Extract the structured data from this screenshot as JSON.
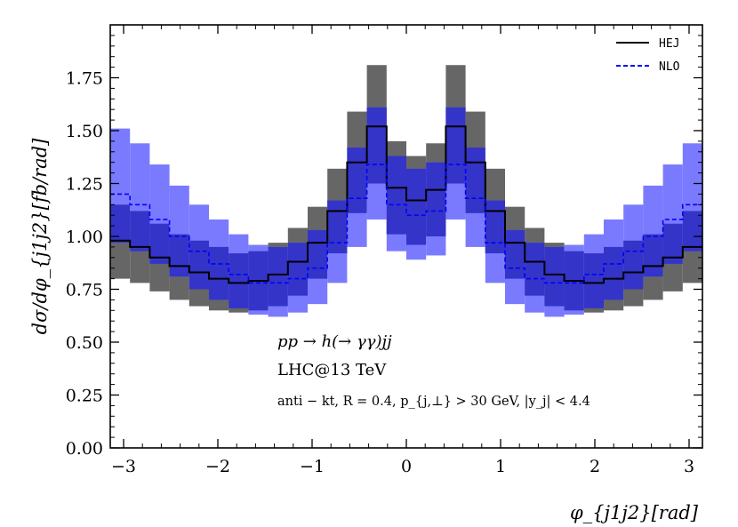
{
  "chart_data": {
    "type": "line",
    "xlabel": "φ_{j1j2}[rad]",
    "ylabel": "dσ/dφ_{j1j2}[fb/rad]",
    "xlim": [
      -3.14159,
      3.14159
    ],
    "ylim": [
      0,
      2.0
    ],
    "xticks": [
      -3,
      -2,
      -1,
      0,
      1,
      2,
      3
    ],
    "xtick_labels": [
      "−3",
      "−2",
      "−1",
      "0",
      "1",
      "2",
      "3"
    ],
    "yticks": [
      0,
      0.25,
      0.5,
      0.75,
      1.0,
      1.25,
      1.5,
      1.75
    ],
    "ytick_labels": [
      "0.00",
      "0.25",
      "0.50",
      "0.75",
      "1.00",
      "1.25",
      "1.50",
      "1.75"
    ],
    "annotations": [
      "pp → h(→ γγ)jj",
      "LHC@13 TeV",
      "anti − kt, R = 0.4, p_{j,⊥} > 30 GeV, |y_j| < 4.4"
    ],
    "legend": {
      "placement": "top-right",
      "entries": [
        "HEJ",
        "NLO"
      ]
    },
    "bins": {
      "n": 30,
      "edges_range": [
        -3.14159,
        3.14159
      ]
    },
    "series": [
      {
        "name": "HEJ",
        "color": "#000000",
        "linestyle": "solid",
        "band_color": "#666666",
        "values": [
          0.98,
          0.95,
          0.9,
          0.86,
          0.83,
          0.8,
          0.78,
          0.79,
          0.82,
          0.88,
          0.97,
          1.12,
          1.35,
          1.52,
          1.23,
          1.17,
          1.22,
          1.52,
          1.35,
          1.12,
          0.97,
          0.88,
          0.82,
          0.79,
          0.78,
          0.8,
          0.83,
          0.86,
          0.9,
          0.95
        ],
        "band_low": [
          0.8,
          0.78,
          0.74,
          0.7,
          0.67,
          0.65,
          0.64,
          0.65,
          0.67,
          0.72,
          0.8,
          0.92,
          1.11,
          1.25,
          1.01,
          0.96,
          1.0,
          1.25,
          1.11,
          0.92,
          0.8,
          0.72,
          0.67,
          0.65,
          0.64,
          0.65,
          0.67,
          0.7,
          0.74,
          0.78
        ],
        "band_high": [
          1.15,
          1.12,
          1.06,
          1.01,
          0.98,
          0.95,
          0.92,
          0.93,
          0.97,
          1.04,
          1.14,
          1.32,
          1.59,
          1.81,
          1.45,
          1.38,
          1.44,
          1.81,
          1.59,
          1.32,
          1.14,
          1.04,
          0.97,
          0.93,
          0.92,
          0.95,
          0.98,
          1.01,
          1.06,
          1.12
        ]
      },
      {
        "name": "NLO",
        "color": "#0000ff",
        "linestyle": "dashed",
        "band_color": "#7a7aff",
        "values": [
          1.2,
          1.15,
          1.08,
          1.0,
          0.93,
          0.87,
          0.82,
          0.78,
          0.78,
          0.8,
          0.85,
          0.97,
          1.18,
          1.34,
          1.15,
          1.1,
          1.12,
          1.34,
          1.18,
          0.97,
          0.85,
          0.8,
          0.78,
          0.78,
          0.82,
          0.87,
          0.93,
          1.0,
          1.08,
          1.15
        ],
        "band_low": [
          0.97,
          0.93,
          0.87,
          0.81,
          0.75,
          0.7,
          0.66,
          0.63,
          0.62,
          0.64,
          0.68,
          0.78,
          0.95,
          1.08,
          0.93,
          0.89,
          0.91,
          1.08,
          0.95,
          0.78,
          0.68,
          0.64,
          0.62,
          0.63,
          0.66,
          0.7,
          0.75,
          0.81,
          0.87,
          0.93
        ],
        "band_high": [
          1.51,
          1.44,
          1.34,
          1.24,
          1.15,
          1.08,
          1.01,
          0.96,
          0.95,
          0.97,
          1.03,
          1.17,
          1.42,
          1.61,
          1.38,
          1.32,
          1.35,
          1.61,
          1.42,
          1.17,
          1.03,
          0.97,
          0.95,
          0.96,
          1.01,
          1.08,
          1.15,
          1.24,
          1.34,
          1.44
        ]
      }
    ],
    "overlap_color": "#3434c8"
  }
}
